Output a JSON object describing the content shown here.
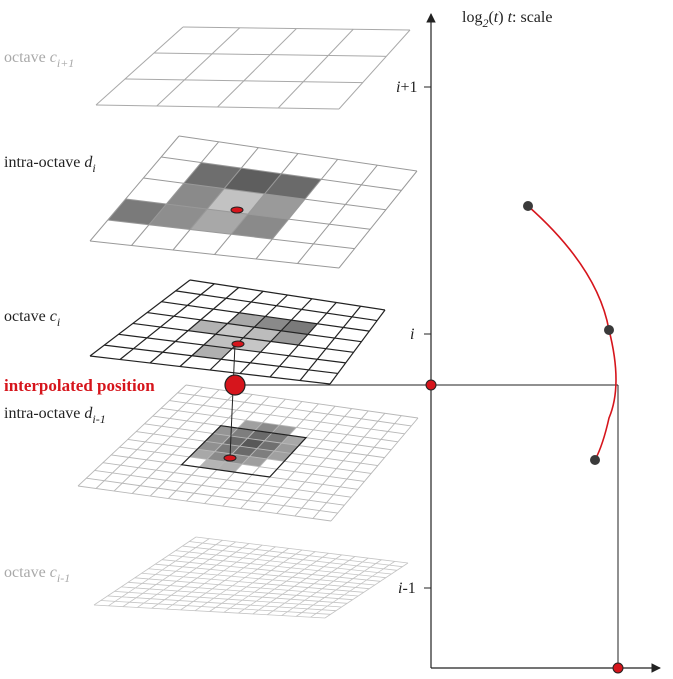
{
  "layers": [
    {
      "id": "octave-upper",
      "name": "octave",
      "var": "c",
      "sub": "i+1",
      "tone": "gray"
    },
    {
      "id": "intra-upper",
      "name": "intra-octave",
      "var": "d",
      "sub": "i",
      "tone": "dark"
    },
    {
      "id": "octave-mid",
      "name": "octave",
      "var": "c",
      "sub": "i",
      "tone": "dark"
    },
    {
      "id": "intra-lower",
      "name": "intra-octave",
      "var": "d",
      "sub": "i-1",
      "tone": "dark"
    },
    {
      "id": "octave-lower",
      "name": "octave",
      "var": "c",
      "sub": "i-1",
      "tone": "gray"
    }
  ],
  "interpolated_label": "interpolated position",
  "axis": {
    "title_prefix": "log",
    "title_sub": "2",
    "title_mid": "(",
    "title_var": "t",
    "title_close": ")  ",
    "title_var2": "t",
    "title_rest": ": scale",
    "ticks": [
      {
        "var": "i",
        "suffix": "+1",
        "value": 1
      },
      {
        "var": "i",
        "suffix": "",
        "value": 0
      },
      {
        "var": "i",
        "suffix": "-1",
        "value": -1
      }
    ]
  },
  "colors": {
    "accent_red": "#d6151c",
    "grid_gray": "#a9a9a9",
    "grid_dark": "#222222",
    "point_dark": "#3a3a3a"
  }
}
